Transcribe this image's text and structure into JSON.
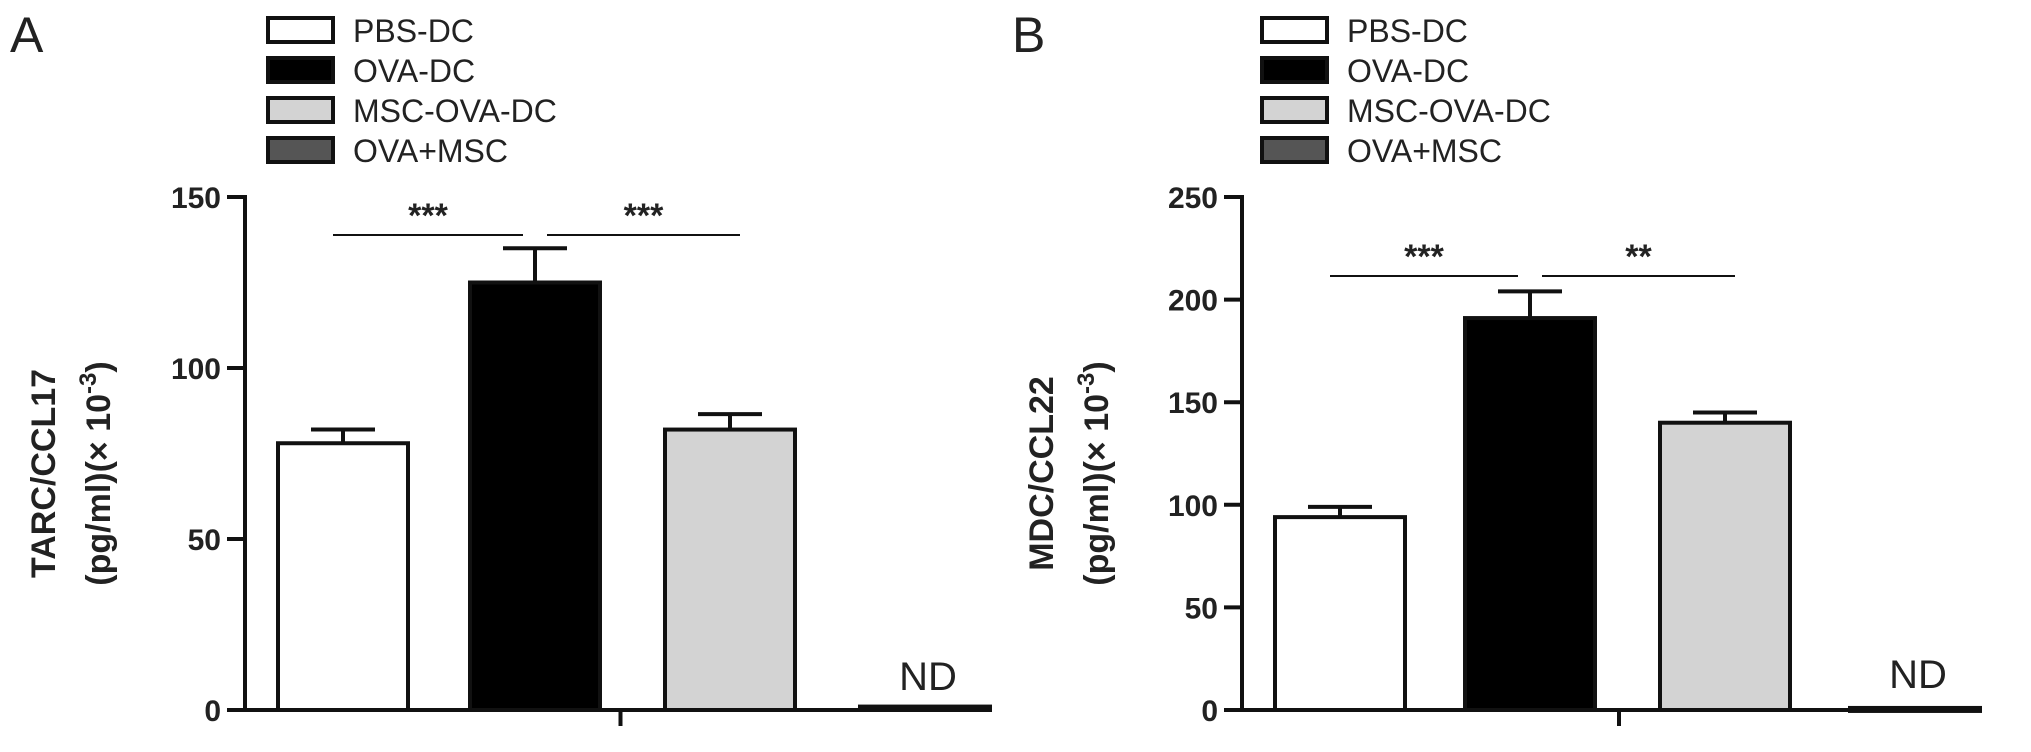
{
  "chart_data": [
    {
      "type": "bar",
      "panel": "A",
      "ylabel_line1": "TARC/CCL17",
      "ylabel_line2": "(pg/ml)(× 10",
      "ylabel_sup": "-3",
      "ylabel_close": ")",
      "ylim": [
        0,
        150
      ],
      "yticks": [
        0,
        50,
        100,
        150
      ],
      "categories": [
        "PBS-DC",
        "OVA-DC",
        "MSC-OVA-DC",
        "OVA+MSC"
      ],
      "values": [
        78,
        125,
        82,
        1
      ],
      "errors": [
        4,
        10,
        4.5,
        0
      ],
      "colors": [
        "#ffffff",
        "#000000",
        "#d3d3d3",
        "#555555"
      ],
      "annotations": [
        {
          "from": 0,
          "to": 1,
          "label": "***"
        },
        {
          "from": 1,
          "to": 2,
          "label": "***"
        }
      ],
      "nd_label": "ND",
      "grid": false,
      "legend_position": "top-left"
    },
    {
      "type": "bar",
      "panel": "B",
      "ylabel_line1": "MDC/CCL22",
      "ylabel_line2": "(pg/ml)(× 10",
      "ylabel_sup": "-3",
      "ylabel_close": ")",
      "ylim": [
        0,
        250
      ],
      "yticks": [
        0,
        50,
        100,
        150,
        200,
        250
      ],
      "categories": [
        "PBS-DC",
        "OVA-DC",
        "MSC-OVA-DC",
        "OVA+MSC"
      ],
      "values": [
        94,
        191,
        140,
        1
      ],
      "errors": [
        5,
        13,
        5,
        0
      ],
      "colors": [
        "#ffffff",
        "#000000",
        "#d3d3d3",
        "#555555"
      ],
      "annotations": [
        {
          "from": 0,
          "to": 1,
          "label": "***"
        },
        {
          "from": 1,
          "to": 2,
          "label": "**"
        }
      ],
      "nd_label": "ND",
      "grid": false,
      "legend_position": "top-left"
    }
  ],
  "legend": [
    "PBS-DC",
    "OVA-DC",
    "MSC-OVA-DC",
    "OVA+MSC"
  ]
}
